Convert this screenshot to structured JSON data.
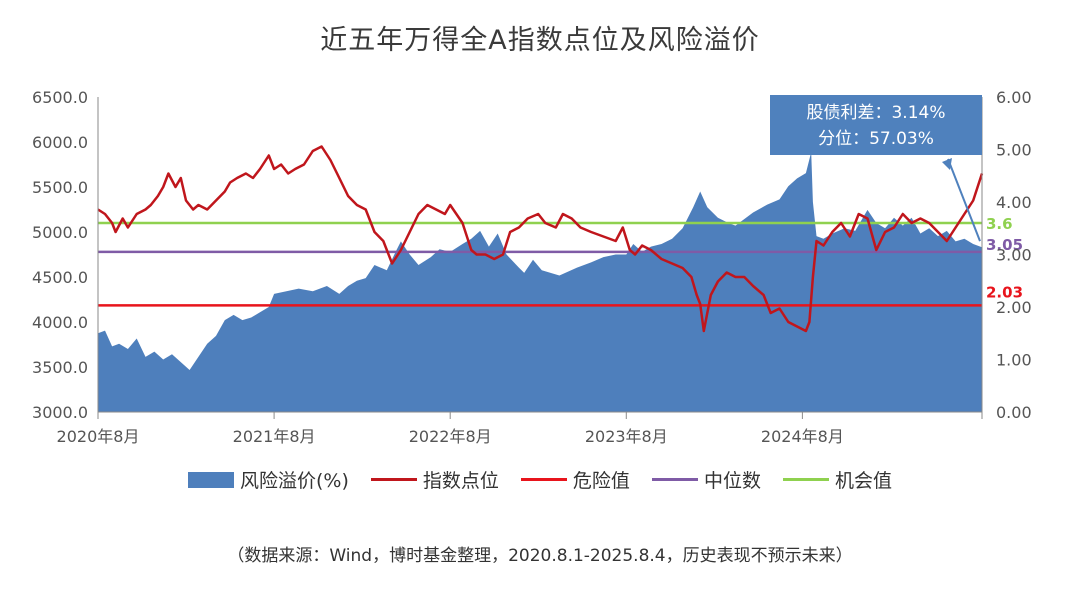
{
  "title": "近五年万得全A指数点位及风险溢价",
  "source": "（数据来源：Wind，博时基金整理，2020.8.1-2025.8.4，历史表现不预示未来）",
  "annotation": {
    "line1": "股债利差：3.14%",
    "line2": "分位：57.03%"
  },
  "colors": {
    "area": "#4e7fbc",
    "index": "#c0161c",
    "danger": "#e8141c",
    "median": "#7f5ba6",
    "opportunity": "#8fd14f",
    "callout": "#4f81bd",
    "axis": "#8a8a8a"
  },
  "chart_data": {
    "type": "line",
    "title": "近五年万得全A指数点位及风险溢价",
    "x_ticks": [
      "2020年8月",
      "2021年8月",
      "2022年8月",
      "2023年8月",
      "2024年8月"
    ],
    "x_range": [
      2020.58,
      2025.6
    ],
    "x_tick_positions": [
      2020.58,
      2021.58,
      2022.58,
      2023.58,
      2024.58
    ],
    "left_axis": {
      "ylim": [
        3000,
        6500
      ],
      "ticks": [
        "3000.0",
        "3500.0",
        "4000.0",
        "4500.0",
        "5000.0",
        "5500.0",
        "6000.0",
        "6500.0"
      ]
    },
    "right_axis": {
      "ylim": [
        0,
        6
      ],
      "ticks": [
        "0.00",
        "1.00",
        "2.00",
        "3.00",
        "4.00",
        "5.00",
        "6.00"
      ]
    },
    "reference_lines": [
      {
        "name": "危险值",
        "value": 2.03,
        "label": "2.03"
      },
      {
        "name": "中位数",
        "value": 3.05,
        "label": "3.05"
      },
      {
        "name": "机会值",
        "value": 3.6,
        "label": "3.6"
      }
    ],
    "series": [
      {
        "name": "风险溢价(%)",
        "axis": "right",
        "kind": "area",
        "points": [
          [
            2020.58,
            1.5
          ],
          [
            2020.62,
            1.55
          ],
          [
            2020.66,
            1.25
          ],
          [
            2020.7,
            1.3
          ],
          [
            2020.75,
            1.2
          ],
          [
            2020.8,
            1.4
          ],
          [
            2020.85,
            1.05
          ],
          [
            2020.9,
            1.15
          ],
          [
            2020.95,
            1.0
          ],
          [
            2021.0,
            1.1
          ],
          [
            2021.05,
            0.95
          ],
          [
            2021.1,
            0.8
          ],
          [
            2021.15,
            1.05
          ],
          [
            2021.2,
            1.3
          ],
          [
            2021.25,
            1.45
          ],
          [
            2021.3,
            1.75
          ],
          [
            2021.35,
            1.85
          ],
          [
            2021.4,
            1.75
          ],
          [
            2021.45,
            1.8
          ],
          [
            2021.5,
            1.9
          ],
          [
            2021.55,
            2.0
          ],
          [
            2021.58,
            2.25
          ],
          [
            2021.65,
            2.3
          ],
          [
            2021.72,
            2.35
          ],
          [
            2021.8,
            2.3
          ],
          [
            2021.88,
            2.4
          ],
          [
            2021.95,
            2.25
          ],
          [
            2022.0,
            2.4
          ],
          [
            2022.05,
            2.5
          ],
          [
            2022.1,
            2.55
          ],
          [
            2022.15,
            2.8
          ],
          [
            2022.22,
            2.7
          ],
          [
            2022.27,
            3.05
          ],
          [
            2022.3,
            3.25
          ],
          [
            2022.35,
            3.0
          ],
          [
            2022.4,
            2.8
          ],
          [
            2022.47,
            2.95
          ],
          [
            2022.52,
            3.1
          ],
          [
            2022.58,
            3.05
          ],
          [
            2022.65,
            3.2
          ],
          [
            2022.7,
            3.3
          ],
          [
            2022.75,
            3.45
          ],
          [
            2022.8,
            3.15
          ],
          [
            2022.85,
            3.4
          ],
          [
            2022.9,
            3.0
          ],
          [
            2022.97,
            2.75
          ],
          [
            2023.0,
            2.65
          ],
          [
            2023.05,
            2.9
          ],
          [
            2023.1,
            2.7
          ],
          [
            2023.2,
            2.6
          ],
          [
            2023.3,
            2.75
          ],
          [
            2023.38,
            2.85
          ],
          [
            2023.45,
            2.95
          ],
          [
            2023.52,
            3.0
          ],
          [
            2023.58,
            3.0
          ],
          [
            2023.62,
            3.2
          ],
          [
            2023.67,
            3.05
          ],
          [
            2023.72,
            3.15
          ],
          [
            2023.78,
            3.2
          ],
          [
            2023.84,
            3.3
          ],
          [
            2023.9,
            3.5
          ],
          [
            2023.96,
            3.9
          ],
          [
            2024.0,
            4.2
          ],
          [
            2024.04,
            3.9
          ],
          [
            2024.1,
            3.7
          ],
          [
            2024.16,
            3.6
          ],
          [
            2024.2,
            3.55
          ],
          [
            2024.3,
            3.8
          ],
          [
            2024.38,
            3.95
          ],
          [
            2024.45,
            4.05
          ],
          [
            2024.5,
            4.3
          ],
          [
            2024.55,
            4.45
          ],
          [
            2024.6,
            4.55
          ],
          [
            2024.63,
            4.95
          ],
          [
            2024.64,
            4.0
          ],
          [
            2024.66,
            3.35
          ],
          [
            2024.7,
            3.3
          ],
          [
            2024.75,
            3.4
          ],
          [
            2024.82,
            3.5
          ],
          [
            2024.88,
            3.45
          ],
          [
            2024.95,
            3.85
          ],
          [
            2025.0,
            3.6
          ],
          [
            2025.05,
            3.5
          ],
          [
            2025.1,
            3.7
          ],
          [
            2025.15,
            3.55
          ],
          [
            2025.2,
            3.7
          ],
          [
            2025.25,
            3.4
          ],
          [
            2025.3,
            3.5
          ],
          [
            2025.35,
            3.35
          ],
          [
            2025.4,
            3.45
          ],
          [
            2025.45,
            3.25
          ],
          [
            2025.5,
            3.3
          ],
          [
            2025.55,
            3.2
          ],
          [
            2025.6,
            3.14
          ]
        ]
      },
      {
        "name": "指数点位",
        "axis": "left",
        "kind": "line",
        "points": [
          [
            2020.58,
            5250
          ],
          [
            2020.62,
            5200
          ],
          [
            2020.66,
            5100
          ],
          [
            2020.68,
            5000
          ],
          [
            2020.72,
            5150
          ],
          [
            2020.75,
            5050
          ],
          [
            2020.8,
            5200
          ],
          [
            2020.85,
            5250
          ],
          [
            2020.88,
            5300
          ],
          [
            2020.92,
            5400
          ],
          [
            2020.95,
            5500
          ],
          [
            2020.98,
            5650
          ],
          [
            2021.02,
            5500
          ],
          [
            2021.05,
            5600
          ],
          [
            2021.08,
            5350
          ],
          [
            2021.12,
            5250
          ],
          [
            2021.15,
            5300
          ],
          [
            2021.2,
            5250
          ],
          [
            2021.25,
            5350
          ],
          [
            2021.3,
            5450
          ],
          [
            2021.33,
            5550
          ],
          [
            2021.37,
            5600
          ],
          [
            2021.42,
            5650
          ],
          [
            2021.46,
            5600
          ],
          [
            2021.5,
            5700
          ],
          [
            2021.55,
            5850
          ],
          [
            2021.58,
            5700
          ],
          [
            2021.62,
            5750
          ],
          [
            2021.66,
            5650
          ],
          [
            2021.7,
            5700
          ],
          [
            2021.75,
            5750
          ],
          [
            2021.8,
            5900
          ],
          [
            2021.85,
            5950
          ],
          [
            2021.9,
            5800
          ],
          [
            2021.95,
            5600
          ],
          [
            2022.0,
            5400
          ],
          [
            2022.05,
            5300
          ],
          [
            2022.1,
            5250
          ],
          [
            2022.15,
            5000
          ],
          [
            2022.2,
            4900
          ],
          [
            2022.25,
            4650
          ],
          [
            2022.3,
            4800
          ],
          [
            2022.35,
            5000
          ],
          [
            2022.4,
            5200
          ],
          [
            2022.45,
            5300
          ],
          [
            2022.5,
            5250
          ],
          [
            2022.55,
            5200
          ],
          [
            2022.58,
            5300
          ],
          [
            2022.65,
            5100
          ],
          [
            2022.7,
            4800
          ],
          [
            2022.73,
            4750
          ],
          [
            2022.78,
            4750
          ],
          [
            2022.83,
            4700
          ],
          [
            2022.88,
            4750
          ],
          [
            2022.92,
            5000
          ],
          [
            2022.97,
            5050
          ],
          [
            2023.02,
            5150
          ],
          [
            2023.08,
            5200
          ],
          [
            2023.12,
            5100
          ],
          [
            2023.18,
            5050
          ],
          [
            2023.22,
            5200
          ],
          [
            2023.27,
            5150
          ],
          [
            2023.32,
            5050
          ],
          [
            2023.38,
            5000
          ],
          [
            2023.45,
            4950
          ],
          [
            2023.52,
            4900
          ],
          [
            2023.56,
            5050
          ],
          [
            2023.6,
            4800
          ],
          [
            2023.63,
            4750
          ],
          [
            2023.67,
            4850
          ],
          [
            2023.72,
            4800
          ],
          [
            2023.78,
            4700
          ],
          [
            2023.84,
            4650
          ],
          [
            2023.9,
            4600
          ],
          [
            2023.95,
            4500
          ],
          [
            2023.98,
            4300
          ],
          [
            2024.0,
            4200
          ],
          [
            2024.02,
            3900
          ],
          [
            2024.06,
            4300
          ],
          [
            2024.1,
            4450
          ],
          [
            2024.15,
            4550
          ],
          [
            2024.2,
            4500
          ],
          [
            2024.25,
            4500
          ],
          [
            2024.3,
            4400
          ],
          [
            2024.36,
            4300
          ],
          [
            2024.4,
            4100
          ],
          [
            2024.45,
            4150
          ],
          [
            2024.5,
            4000
          ],
          [
            2024.55,
            3950
          ],
          [
            2024.6,
            3900
          ],
          [
            2024.62,
            4000
          ],
          [
            2024.64,
            4500
          ],
          [
            2024.66,
            4900
          ],
          [
            2024.7,
            4850
          ],
          [
            2024.75,
            5000
          ],
          [
            2024.8,
            5100
          ],
          [
            2024.85,
            4950
          ],
          [
            2024.9,
            5200
          ],
          [
            2024.95,
            5150
          ],
          [
            2025.0,
            4800
          ],
          [
            2025.05,
            5000
          ],
          [
            2025.1,
            5050
          ],
          [
            2025.15,
            5200
          ],
          [
            2025.2,
            5100
          ],
          [
            2025.25,
            5150
          ],
          [
            2025.3,
            5100
          ],
          [
            2025.35,
            5000
          ],
          [
            2025.4,
            4900
          ],
          [
            2025.45,
            5050
          ],
          [
            2025.5,
            5200
          ],
          [
            2025.55,
            5350
          ],
          [
            2025.6,
            5650
          ]
        ]
      }
    ]
  },
  "legend": [
    {
      "name": "风险溢价(%)",
      "kind": "area"
    },
    {
      "name": "指数点位",
      "kind": "line"
    },
    {
      "name": "危险值",
      "kind": "line"
    },
    {
      "name": "中位数",
      "kind": "line"
    },
    {
      "name": "机会值",
      "kind": "line"
    }
  ]
}
